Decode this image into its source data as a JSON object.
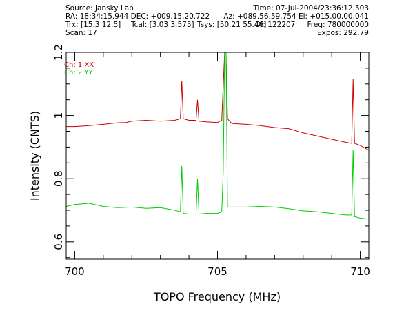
{
  "header": {
    "source": "Source: Jansky Lab",
    "time": "Time: 07-Jul-2004/23:36:12.503",
    "ra_dec": "RA: 18:34:15.944 DEC: +009.15.20.722",
    "az_el": "Az: +089.56.59.754 El: +015.00.00.041",
    "trx": "Trx: [15.3 12.5]",
    "tcal": "Tcal: [3.03 3.575]",
    "tsys": "Tsys: [50.21 55.46]",
    "dv": "Df: 122207",
    "freq": "Freq: 780000000",
    "scan": "Scan: 17",
    "expos": "Expos: 292.79"
  },
  "chart_data": {
    "type": "line",
    "xlabel": "TOPO Frequency (MHz)",
    "ylabel": "Intensity (CNTS)",
    "xlim": [
      699.7,
      710.3
    ],
    "ylim": [
      0.545,
      1.2
    ],
    "x_ticks": [
      700,
      705,
      710
    ],
    "x_tick_labels": [
      "700",
      "705",
      "710"
    ],
    "y_ticks": [
      0.6,
      0.8,
      1,
      1.2
    ],
    "y_tick_labels": [
      "0.6",
      "0.8",
      "1",
      "1.2"
    ],
    "grid": false,
    "legend_position": "top-left",
    "series": [
      {
        "name": "Ch: 1 XX",
        "color": "#cc0000",
        "x": [
          699.7,
          700.0,
          700.5,
          701.0,
          701.5,
          701.8,
          702.0,
          702.5,
          703.0,
          703.5,
          703.7,
          703.75,
          703.8,
          704.0,
          704.25,
          704.3,
          704.35,
          704.6,
          705.0,
          705.15,
          705.25,
          705.3,
          705.35,
          705.5,
          706.0,
          706.5,
          707.0,
          707.5,
          708.0,
          708.5,
          709.0,
          709.5,
          709.7,
          709.75,
          709.8,
          710.0,
          710.3
        ],
        "values": [
          0.965,
          0.965,
          0.968,
          0.972,
          0.977,
          0.978,
          0.982,
          0.985,
          0.982,
          0.985,
          0.99,
          1.11,
          0.99,
          0.985,
          0.985,
          1.05,
          0.982,
          0.98,
          0.978,
          0.985,
          1.2,
          1.2,
          0.99,
          0.975,
          0.972,
          0.968,
          0.962,
          0.958,
          0.945,
          0.935,
          0.925,
          0.915,
          0.912,
          1.115,
          0.912,
          0.905,
          0.89
        ]
      },
      {
        "name": "Ch: 2 YY",
        "color": "#00cc00",
        "x": [
          699.7,
          700.0,
          700.5,
          701.0,
          701.5,
          702.0,
          702.5,
          703.0,
          703.5,
          703.7,
          703.75,
          703.8,
          704.0,
          704.25,
          704.3,
          704.35,
          704.6,
          705.0,
          705.15,
          705.2,
          705.25,
          705.3,
          705.35,
          705.5,
          706.0,
          706.5,
          707.0,
          707.5,
          708.0,
          708.5,
          709.0,
          709.5,
          709.7,
          709.75,
          709.8,
          710.0,
          710.3
        ],
        "values": [
          0.712,
          0.718,
          0.722,
          0.712,
          0.708,
          0.71,
          0.706,
          0.708,
          0.7,
          0.695,
          0.84,
          0.69,
          0.688,
          0.688,
          0.8,
          0.688,
          0.69,
          0.69,
          0.695,
          0.82,
          1.2,
          1.2,
          0.71,
          0.71,
          0.71,
          0.712,
          0.71,
          0.705,
          0.698,
          0.695,
          0.69,
          0.685,
          0.685,
          0.89,
          0.68,
          0.675,
          0.672
        ]
      }
    ]
  }
}
